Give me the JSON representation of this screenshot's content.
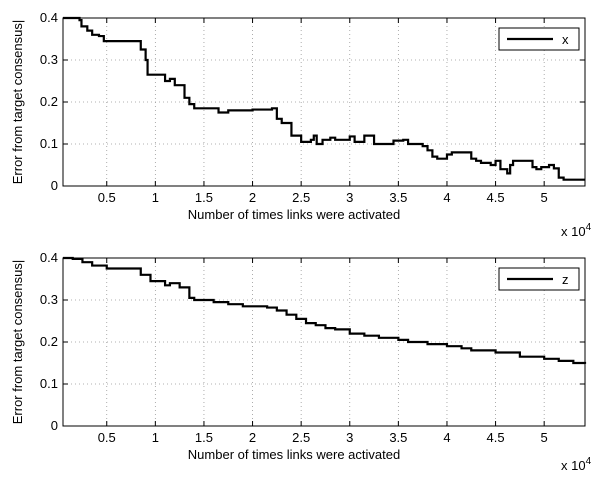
{
  "chart_data": [
    {
      "type": "line",
      "xlabel": "Number of times links were activated",
      "ylabel": "Error from target consensus|",
      "x_scale_label": "x 10",
      "x_scale_exponent": "4",
      "xlim": [
        0.05,
        5.42
      ],
      "ylim": [
        0,
        0.4
      ],
      "xticks": [
        0.5,
        1,
        1.5,
        2,
        2.5,
        3,
        3.5,
        4,
        4.5,
        5
      ],
      "xtick_labels": [
        "0.5",
        "1",
        "1.5",
        "2",
        "2.5",
        "3",
        "3.5",
        "4",
        "4.5",
        "5"
      ],
      "yticks": [
        0,
        0.1,
        0.2,
        0.3,
        0.4
      ],
      "ytick_labels": [
        "0",
        "0.1",
        "0.2",
        "0.3",
        "0.4"
      ],
      "grid": true,
      "legend_position": "top-right",
      "series": [
        {
          "name": "x",
          "color": "#000000",
          "x": [
            0.05,
            0.22,
            0.24,
            0.3,
            0.35,
            0.42,
            0.47,
            0.6,
            0.85,
            0.9,
            0.92,
            0.95,
            1.1,
            1.15,
            1.2,
            1.3,
            1.35,
            1.4,
            1.6,
            1.65,
            1.75,
            2.0,
            2.2,
            2.25,
            2.3,
            2.4,
            2.5,
            2.6,
            2.63,
            2.66,
            2.72,
            2.8,
            2.85,
            3.0,
            3.05,
            3.15,
            3.25,
            3.35,
            3.45,
            3.55,
            3.6,
            3.75,
            3.8,
            3.85,
            3.9,
            4.0,
            4.05,
            4.25,
            4.3,
            4.35,
            4.45,
            4.5,
            4.55,
            4.62,
            4.65,
            4.68,
            4.75,
            4.88,
            4.92,
            4.97,
            5.05,
            5.1,
            5.15,
            5.2,
            5.42
          ],
          "y": [
            0.4,
            0.395,
            0.38,
            0.37,
            0.36,
            0.357,
            0.345,
            0.345,
            0.325,
            0.3,
            0.265,
            0.265,
            0.25,
            0.255,
            0.24,
            0.21,
            0.195,
            0.185,
            0.185,
            0.175,
            0.18,
            0.182,
            0.185,
            0.16,
            0.15,
            0.12,
            0.105,
            0.11,
            0.12,
            0.1,
            0.11,
            0.115,
            0.11,
            0.118,
            0.105,
            0.12,
            0.1,
            0.1,
            0.108,
            0.11,
            0.1,
            0.095,
            0.085,
            0.07,
            0.065,
            0.075,
            0.08,
            0.065,
            0.06,
            0.055,
            0.05,
            0.06,
            0.04,
            0.03,
            0.05,
            0.06,
            0.06,
            0.045,
            0.04,
            0.045,
            0.05,
            0.042,
            0.02,
            0.015,
            0.015
          ]
        }
      ]
    },
    {
      "type": "line",
      "xlabel": "Number of times links were activated",
      "ylabel": "Error from target consensus|",
      "x_scale_label": "x 10",
      "x_scale_exponent": "4",
      "xlim": [
        0.05,
        5.42
      ],
      "ylim": [
        0,
        0.4
      ],
      "xticks": [
        0.5,
        1,
        1.5,
        2,
        2.5,
        3,
        3.5,
        4,
        4.5,
        5
      ],
      "xtick_labels": [
        "0.5",
        "1",
        "1.5",
        "2",
        "2.5",
        "3",
        "3.5",
        "4",
        "4.5",
        "5"
      ],
      "yticks": [
        0,
        0.1,
        0.2,
        0.3,
        0.4
      ],
      "ytick_labels": [
        "0",
        "0.1",
        "0.2",
        "0.3",
        "0.4"
      ],
      "grid": true,
      "legend_position": "top-right",
      "series": [
        {
          "name": "z",
          "color": "#000000",
          "x": [
            0.05,
            0.15,
            0.25,
            0.35,
            0.5,
            0.7,
            0.85,
            0.95,
            1.1,
            1.15,
            1.25,
            1.35,
            1.4,
            1.5,
            1.6,
            1.75,
            1.9,
            2.0,
            2.15,
            2.25,
            2.35,
            2.45,
            2.55,
            2.65,
            2.75,
            2.85,
            3.0,
            3.15,
            3.3,
            3.5,
            3.6,
            3.8,
            4.0,
            4.15,
            4.25,
            4.5,
            4.75,
            5.0,
            5.15,
            5.3,
            5.42
          ],
          "y": [
            0.4,
            0.398,
            0.39,
            0.382,
            0.375,
            0.375,
            0.36,
            0.345,
            0.335,
            0.34,
            0.33,
            0.305,
            0.3,
            0.3,
            0.295,
            0.29,
            0.285,
            0.285,
            0.282,
            0.275,
            0.265,
            0.255,
            0.245,
            0.24,
            0.233,
            0.23,
            0.22,
            0.215,
            0.21,
            0.205,
            0.2,
            0.195,
            0.19,
            0.185,
            0.18,
            0.175,
            0.165,
            0.16,
            0.155,
            0.15,
            0.148
          ]
        }
      ]
    }
  ]
}
